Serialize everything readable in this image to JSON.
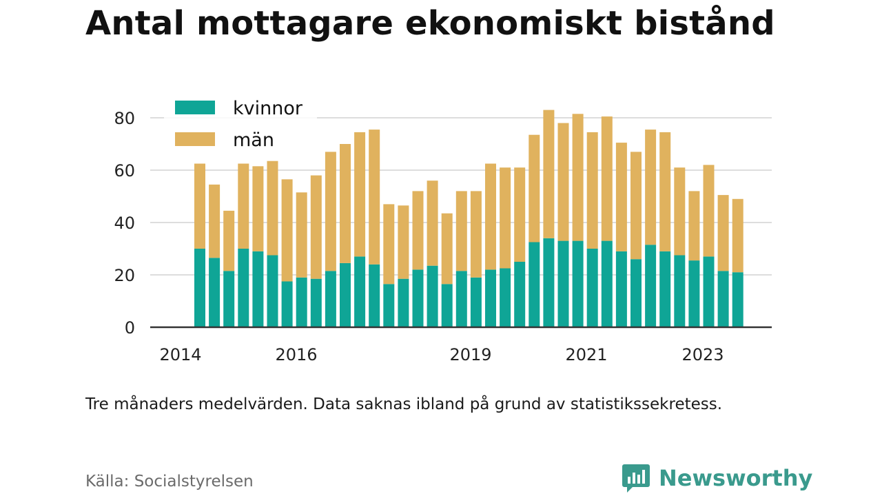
{
  "title": "Antal mottagare ekonomiskt bistånd",
  "note": "Tre månaders medelvärden. Data saknas ibland på grund av statistikssekretess.",
  "source": "Källa: Socialstyrelsen",
  "brand": {
    "name": "Newsworthy",
    "icon": "newsworthy-bar-chart-icon"
  },
  "colors": {
    "kvinnor": "#0fa596",
    "man": "#e0b25e",
    "grid": "#dddddd",
    "axis": "#333333",
    "brand": "#3a9a8d"
  },
  "chart_data": {
    "type": "bar",
    "stacked": true,
    "ylim": [
      0,
      90
    ],
    "yticks": [
      0,
      20,
      40,
      60,
      80
    ],
    "xticks": [
      "2014",
      "2016",
      "2019",
      "2021",
      "2023"
    ],
    "grid": true,
    "legend_position": "top-left",
    "series": [
      {
        "name": "kvinnor",
        "values": [
          30,
          26.5,
          21.5,
          30,
          29,
          27.5,
          17.5,
          19,
          18.5,
          21.5,
          24.5,
          27,
          24,
          16.5,
          18.5,
          22,
          23.5,
          16.5,
          21.5,
          19,
          22,
          22.5,
          25,
          32.5,
          34,
          33,
          33,
          30,
          33,
          29,
          26,
          31.5,
          29,
          27.5,
          25.5,
          27,
          21.5,
          21
        ]
      },
      {
        "name": "män",
        "values": [
          32.5,
          28,
          23,
          32.5,
          32.5,
          36,
          39,
          32.5,
          39.5,
          45.5,
          45.5,
          47.5,
          51.5,
          30.5,
          28,
          30,
          32.5,
          27,
          30.5,
          33,
          40.5,
          38.5,
          36,
          41,
          49,
          45,
          48.5,
          44.5,
          47.5,
          41.5,
          41,
          44,
          45.5,
          33.5,
          26.5,
          35,
          29,
          28
        ]
      }
    ]
  }
}
